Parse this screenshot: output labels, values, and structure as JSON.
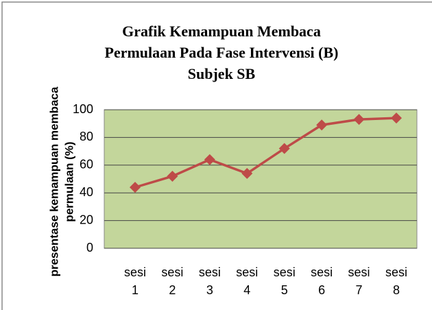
{
  "chart_data": {
    "type": "line",
    "title": [
      "Grafik Kemampuan Membaca",
      "Permulaan Pada Fase Intervensi (B)",
      "Subjek SB"
    ],
    "y_label": [
      "presentase kemampuan membaca",
      "permulaan (%)"
    ],
    "categories": [
      "sesi 1",
      "sesi 2",
      "sesi 3",
      "sesi 4",
      "sesi 5",
      "sesi 6",
      "sesi 7",
      "sesi 8"
    ],
    "values": [
      44,
      52,
      64,
      54,
      72,
      89,
      93,
      94
    ],
    "color": "#be4b48",
    "plot_background": "#c3d69b",
    "ylim": [
      0,
      100
    ],
    "yticks": [
      0,
      20,
      40,
      60,
      80,
      100
    ],
    "grid": true
  }
}
